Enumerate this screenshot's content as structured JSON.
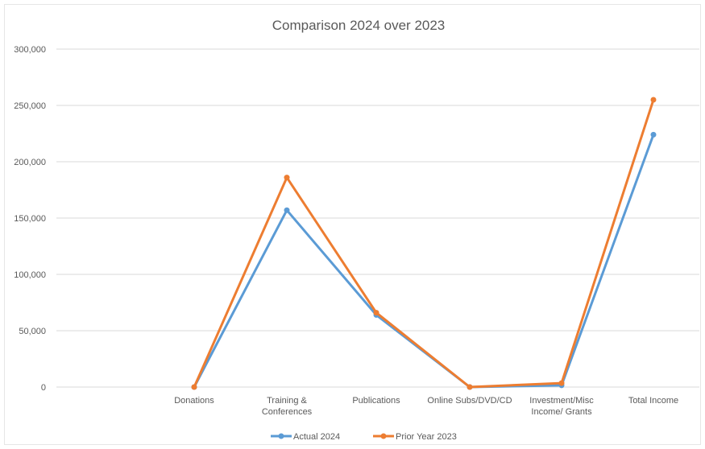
{
  "chart_data": {
    "type": "line",
    "title": "Comparison 2024 over 2023",
    "xlabel": "",
    "ylabel": "",
    "ylim": [
      0,
      300000
    ],
    "yticks": [
      0,
      50000,
      100000,
      150000,
      200000,
      250000,
      300000
    ],
    "ytick_labels": [
      "0",
      "50,000",
      "100,000",
      "150,000",
      "200,000",
      "250,000",
      "300,000"
    ],
    "grid": true,
    "legend_position": "bottom",
    "categories": [
      [
        "Donations"
      ],
      [
        "Training &",
        "Conferences"
      ],
      [
        "Publications"
      ],
      [
        "Online Subs/DVD/CD"
      ],
      [
        "Investment/Misc",
        "Income/ Grants"
      ],
      [
        "Total Income"
      ]
    ],
    "series": [
      {
        "name": "Actual 2024",
        "color": "#5b9bd5",
        "values": [
          0,
          157000,
          64000,
          0,
          1500,
          224000
        ]
      },
      {
        "name": "Prior Year 2023",
        "color": "#ed7d31",
        "values": [
          0,
          186000,
          66000,
          0,
          3500,
          255000
        ]
      }
    ]
  }
}
